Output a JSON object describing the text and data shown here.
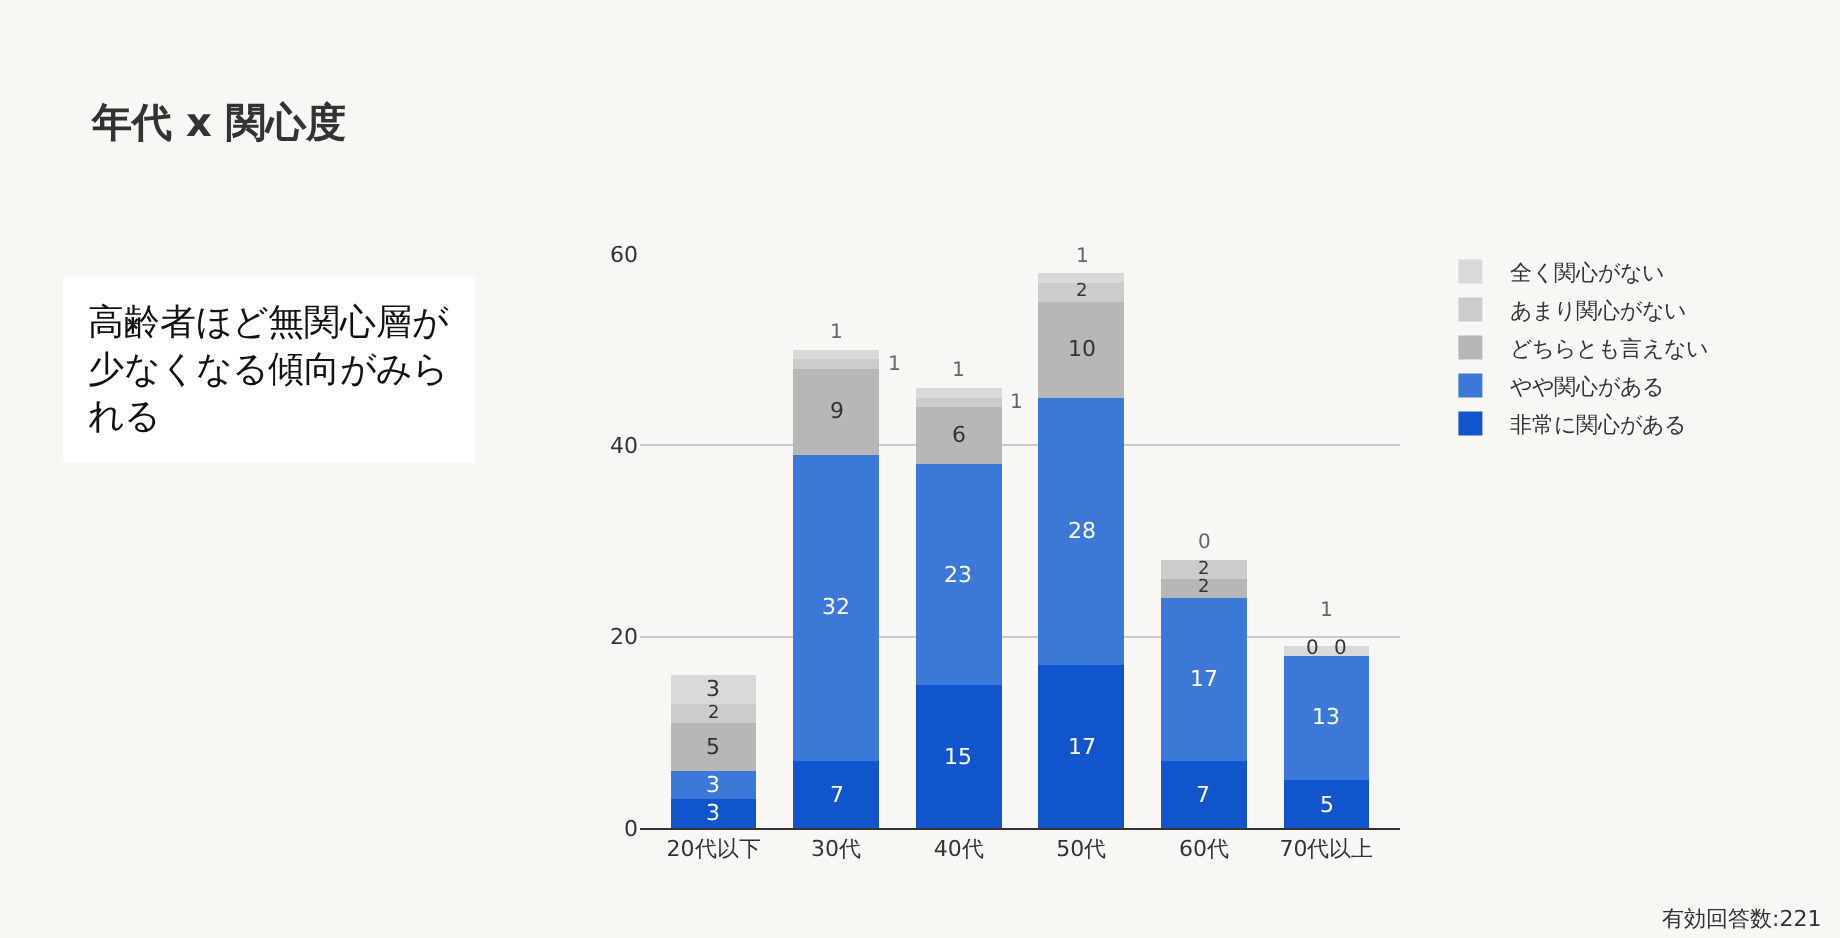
{
  "chart_data": {
    "type": "bar",
    "title": "年代 x 関心度",
    "categories": [
      "20代以下",
      "30代",
      "40代",
      "50代",
      "60代",
      "70代以上"
    ],
    "stacked": true,
    "series": [
      {
        "name": "非常に関心がある",
        "color": "#1155cc",
        "values": [
          3,
          7,
          15,
          17,
          7,
          5
        ]
      },
      {
        "name": "やや関心がある",
        "color": "#3c78d8",
        "values": [
          3,
          32,
          23,
          28,
          17,
          13
        ]
      },
      {
        "name": "どちらとも言えない",
        "color": "#b7b7b7",
        "values": [
          5,
          9,
          6,
          10,
          2,
          0
        ]
      },
      {
        "name": "あまり関心がない",
        "color": "#cccccc",
        "values": [
          2,
          1,
          1,
          2,
          2,
          0
        ]
      },
      {
        "name": "全く関心がない",
        "color": "#d9d9d9",
        "values": [
          3,
          1,
          1,
          1,
          0,
          1
        ]
      }
    ],
    "ylim": [
      0,
      60
    ],
    "yticks": [
      0,
      20,
      40,
      60
    ],
    "grid": "y",
    "legend": "right",
    "data_labels": true,
    "annotations": [
      "高齢者ほど無関心層が少なくなる傾向がみられる",
      "有効回答数:221"
    ]
  }
}
